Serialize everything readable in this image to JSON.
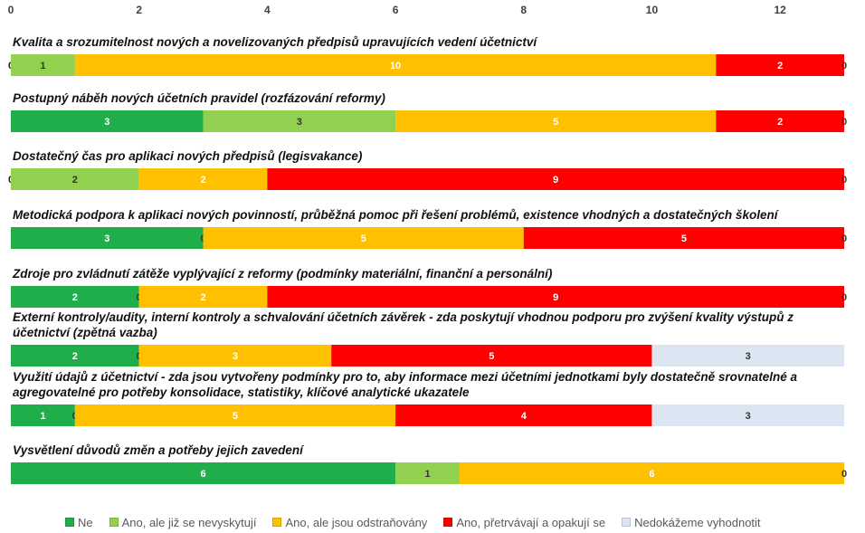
{
  "chart_data": {
    "type": "stacked-bar-horizontal",
    "categories": [
      "Kvalita a srozumitelnost nových a novelizovaných předpisů upravujících vedení účetnictví",
      "Postupný náběh nových účetních pravidel (rozfázování reformy)",
      "Dostatečný čas pro aplikaci nových předpisů (legisvakance)",
      "Metodická podpora k aplikaci nových povinností, průběžná pomoc při řešení problémů, existence vhodných a dostatečných školení",
      "Zdroje pro zvládnutí zátěže vyplývající z reformy (podmínky materiální, finanční a personální)",
      "Externí kontroly/audity, interní kontroly a schvalování účetních závěrek - zda poskytují vhodnou podporu pro zvýšení kvality výstupů z účetnictví (zpětná vazba)",
      "Využití údajů z účetnictví - zda jsou vytvořeny podmínky pro to, aby informace mezi účetními jednotkami byly dostatečně srovnatelné a agregovatelné pro potřeby konsolidace, statistiky, klíčové analytické ukazatele",
      "Vysvětlení důvodů změn a potřeby jejich zavedení"
    ],
    "series": [
      {
        "name": "Ne",
        "color": "#1fae4a",
        "values": [
          0,
          3,
          0,
          3,
          2,
          2,
          1,
          6
        ]
      },
      {
        "name": "Ano, ale již se nevyskytují",
        "color": "#92d050",
        "values": [
          1,
          3,
          2,
          0,
          0,
          0,
          0,
          1
        ]
      },
      {
        "name": "Ano, ale jsou odstraňovány",
        "color": "#ffc000",
        "values": [
          10,
          5,
          2,
          5,
          2,
          3,
          5,
          6
        ]
      },
      {
        "name": "Ano, přetrvávají a opakují se",
        "color": "#ff0000",
        "values": [
          2,
          2,
          9,
          5,
          9,
          5,
          4,
          null
        ]
      },
      {
        "name": "Nedokážeme vyhodnotit",
        "color": "#dce6f2",
        "values": [
          0,
          0,
          0,
          0,
          0,
          3,
          3,
          0
        ]
      }
    ],
    "xlim": [
      0,
      13
    ],
    "xticks": [
      0,
      2,
      4,
      6,
      8,
      10,
      12
    ],
    "legend": "bottom"
  }
}
